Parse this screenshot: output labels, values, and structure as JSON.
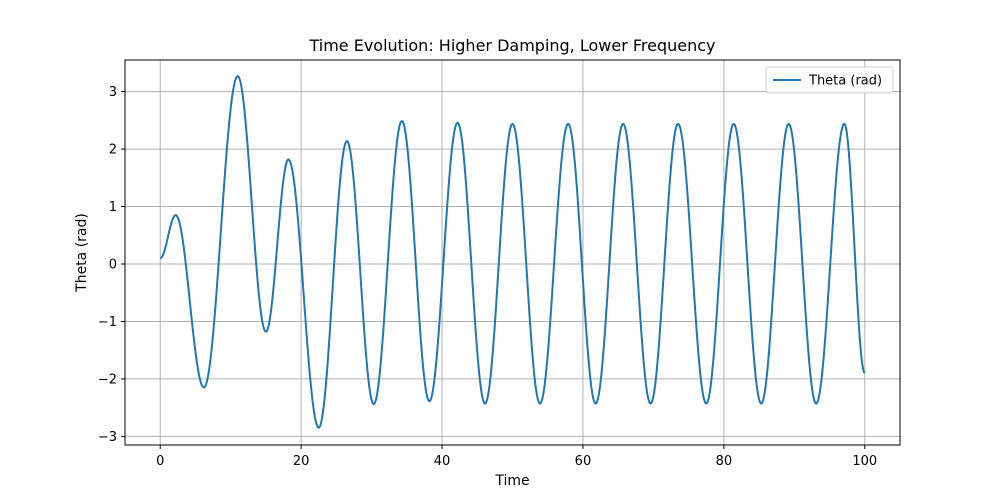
{
  "chart_data": {
    "type": "line",
    "title": "Time Evolution: Higher Damping, Lower Frequency",
    "xlabel": "Time",
    "ylabel": "Theta (rad)",
    "xlim": [
      -5,
      105
    ],
    "ylim": [
      -3.15,
      3.55
    ],
    "xticks": [
      0,
      20,
      40,
      60,
      80,
      100
    ],
    "xtick_labels": [
      "0",
      "20",
      "40",
      "60",
      "80",
      "100"
    ],
    "yticks": [
      -3,
      -2,
      -1,
      0,
      1,
      2,
      3
    ],
    "ytick_labels": [
      "−3",
      "−2",
      "−1",
      "0",
      "1",
      "2",
      "3"
    ],
    "grid": true,
    "legend_position": "top-right",
    "series_color": "#1f77b4",
    "series": [
      {
        "name": "Theta (rad)",
        "x": [
          0,
          2.2,
          6.2,
          11.0,
          15.0,
          18.2,
          22.5,
          26.5,
          30.3,
          34.3,
          38.2,
          42.2,
          46.1,
          50.0,
          53.9,
          57.9,
          61.8,
          65.7,
          69.6,
          73.5,
          77.5,
          81.4,
          85.3,
          89.2,
          93.1,
          97.1,
          100
        ],
        "y": [
          0.1,
          0.85,
          -2.15,
          3.27,
          -1.18,
          1.82,
          -2.85,
          2.14,
          -2.44,
          2.49,
          -2.39,
          2.46,
          -2.43,
          2.44,
          -2.43,
          2.44,
          -2.43,
          2.44,
          -2.43,
          2.44,
          -2.43,
          2.44,
          -2.43,
          2.44,
          -2.43,
          2.44,
          -1.9
        ]
      }
    ]
  }
}
